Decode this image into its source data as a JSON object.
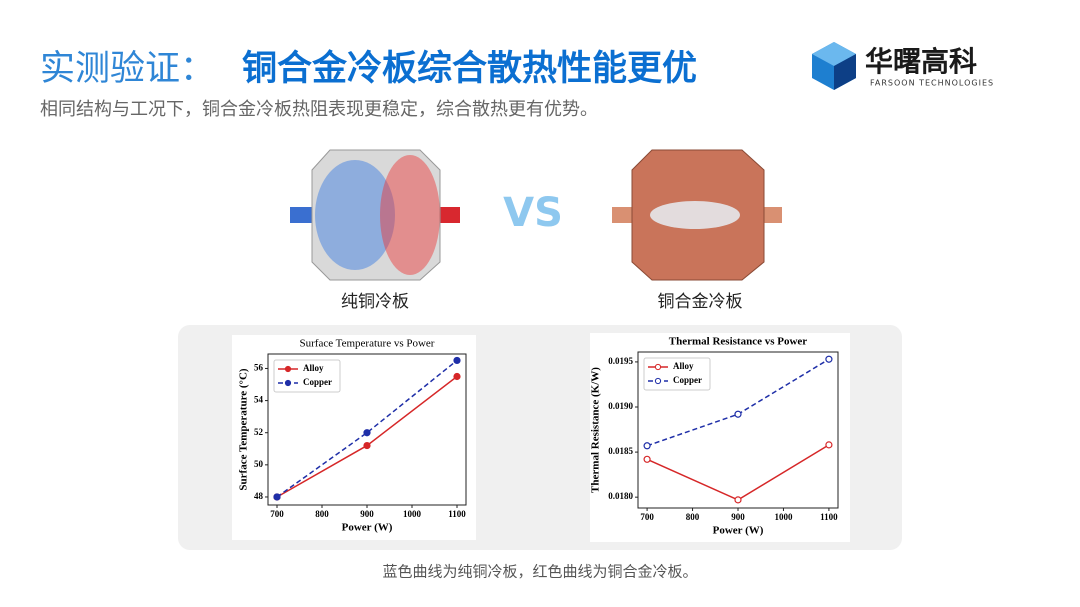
{
  "slide": {
    "title_lead": "实测验证：",
    "title_main": "铜合金冷板综合散热性能更优",
    "subtitle": "相同结构与工况下，铜合金冷板热阻表现更稳定，综合散热更有优势。",
    "logo_name": "华曙高科",
    "logo_sub": "FARSOON TECHNOLOGIES",
    "vs": "VS",
    "left_label": "纯铜冷板",
    "right_label": "铜合金冷板",
    "caption": "蓝色曲线为纯铜冷板，红色曲线为铜合金冷板。"
  },
  "chart_data": [
    {
      "type": "line",
      "title": "Surface Temperature vs Power",
      "xlabel": "Power (W)",
      "ylabel": "Surface Temperature (°C)",
      "x": [
        700,
        900,
        1100
      ],
      "series": [
        {
          "name": "Alloy",
          "color": "#d62728",
          "dash": false,
          "values": [
            48.0,
            51.2,
            55.5
          ]
        },
        {
          "name": "Copper",
          "color": "#1f2fa8",
          "dash": true,
          "values": [
            48.0,
            52.0,
            56.5
          ]
        }
      ],
      "markers": "filled",
      "legend": "upper left",
      "xlim": [
        680,
        1120
      ],
      "xticks": [
        700,
        800,
        900,
        1000,
        1100
      ],
      "ylim": [
        47.5,
        56.9
      ],
      "yticks": [
        48,
        50,
        52,
        54,
        56
      ]
    },
    {
      "type": "line",
      "title": "Thermal Resistance vs Power",
      "xlabel": "Power (W)",
      "ylabel": "Thermal Resistance (K/W)",
      "x": [
        700,
        900,
        1100
      ],
      "series": [
        {
          "name": "Alloy",
          "color": "#d62728",
          "dash": false,
          "values": [
            0.01842,
            0.01797,
            0.01858
          ]
        },
        {
          "name": "Copper",
          "color": "#1f2fa8",
          "dash": true,
          "values": [
            0.01857,
            0.01892,
            0.01953
          ]
        }
      ],
      "markers": "open",
      "legend": "upper left",
      "xlim": [
        680,
        1120
      ],
      "xticks": [
        700,
        800,
        900,
        1000,
        1100
      ],
      "ylim": [
        0.01788,
        0.01961
      ],
      "yticks": [
        {
          "value": 0.018,
          "label": "0.0180"
        },
        {
          "value": 0.0185,
          "label": "0.0185"
        },
        {
          "value": 0.019,
          "label": "0.0190"
        },
        {
          "value": 0.0195,
          "label": "0.0195"
        }
      ]
    }
  ]
}
